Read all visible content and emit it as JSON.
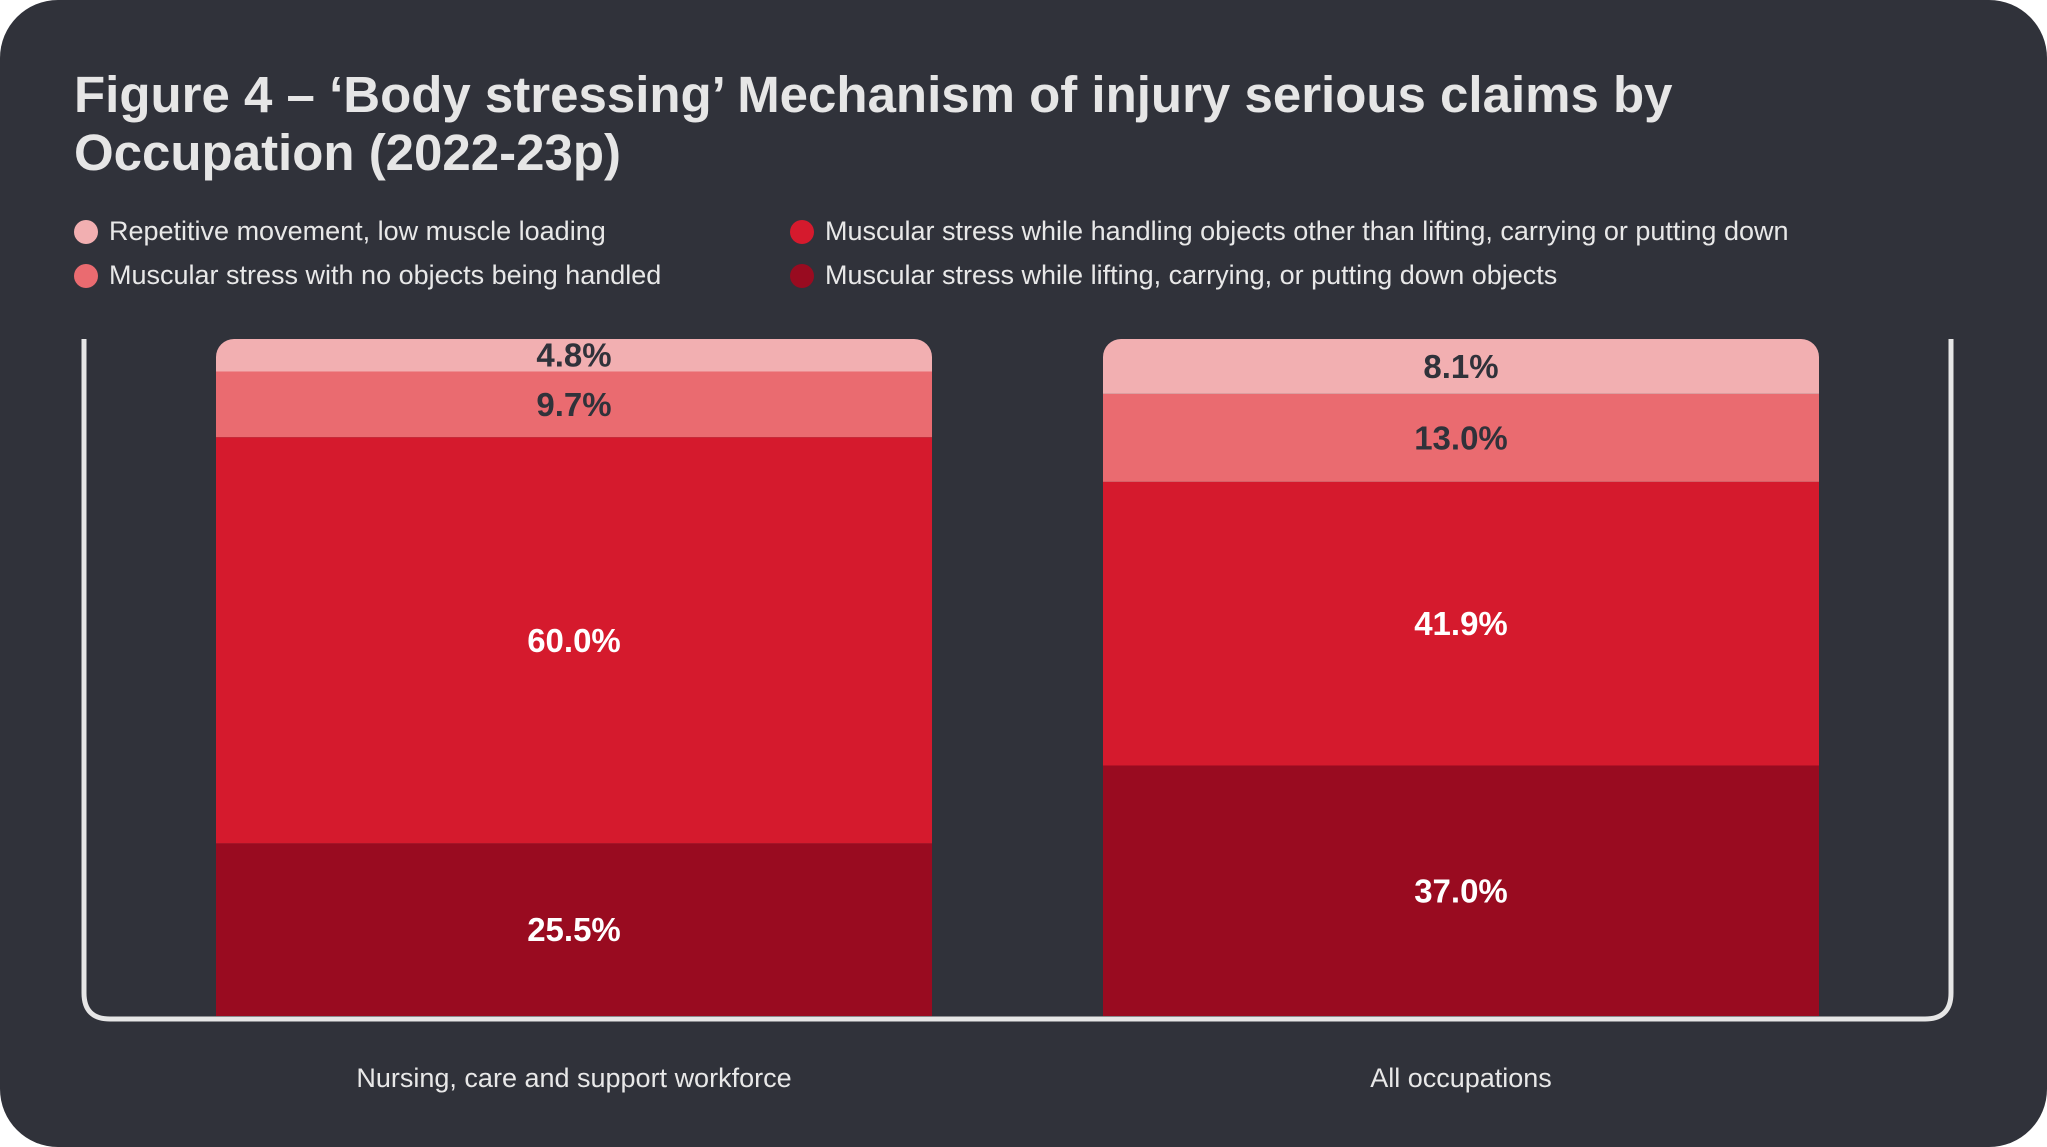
{
  "chart_data": {
    "type": "bar",
    "stacked": true,
    "title": "Figure 4 – ‘Body stressing’ Mechanism of injury serious claims by Occupation (2022-23p)",
    "categories": [
      "Nursing, care and support workforce",
      "All occupations"
    ],
    "ylim": [
      0,
      100
    ],
    "legend_position": "top",
    "series": [
      {
        "name": "Muscular stress while lifting, carrying, or putting down objects",
        "values": [
          25.5,
          37.0
        ],
        "labels": [
          "25.5%",
          "37.0%"
        ],
        "color": "#990b20",
        "label_color": "#ffffff"
      },
      {
        "name": "Muscular stress while handling objects other than lifting, carrying or putting down",
        "values": [
          60.0,
          41.9
        ],
        "labels": [
          "60.0%",
          "41.9%"
        ],
        "color": "#d51a2d",
        "label_color": "#ffffff"
      },
      {
        "name": "Muscular stress with no objects being handled",
        "values": [
          9.7,
          13.0
        ],
        "labels": [
          "9.7%",
          "13.0%"
        ],
        "color": "#ea6b70",
        "label_color": "#30323a"
      },
      {
        "name": "Repetitive movement, low muscle loading",
        "values": [
          4.8,
          8.1
        ],
        "labels": [
          "4.8%",
          "8.1%"
        ],
        "color": "#f2afb1",
        "label_color": "#30323a"
      }
    ],
    "legend_order": [
      3,
      2,
      1,
      0
    ],
    "colors": {
      "background": "#30323a",
      "axis": "#e6e6e6",
      "text": "#e8e8e8"
    }
  }
}
